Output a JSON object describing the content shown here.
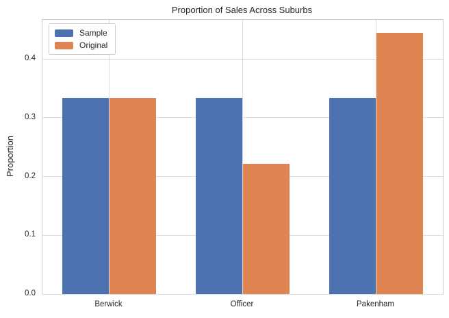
{
  "chart_data": {
    "type": "bar",
    "title": "Proportion of Sales Across Suburbs",
    "xlabel": "",
    "ylabel": "Proportion",
    "categories": [
      "Berwick",
      "Officer",
      "Pakenham"
    ],
    "series": [
      {
        "name": "Sample",
        "color": "#4C72B0",
        "values": [
          0.3333,
          0.3333,
          0.3333
        ]
      },
      {
        "name": "Original",
        "color": "#DD8452",
        "values": [
          0.3333,
          0.2222,
          0.4444
        ]
      }
    ],
    "ylim": [
      0,
      0.4667
    ],
    "yticks": [
      0.0,
      0.1,
      0.2,
      0.3,
      0.4
    ],
    "ytick_labels": [
      "0.0",
      "0.1",
      "0.2",
      "0.3",
      "0.4"
    ],
    "grid": true,
    "grid_orientation": "both",
    "legend_position": "upper left",
    "bar_width_units": 0.35
  },
  "style": {
    "background": "#ffffff",
    "border_color": "#cccccc",
    "grid_color": "#dcdcdc",
    "text_color": "#262626"
  }
}
